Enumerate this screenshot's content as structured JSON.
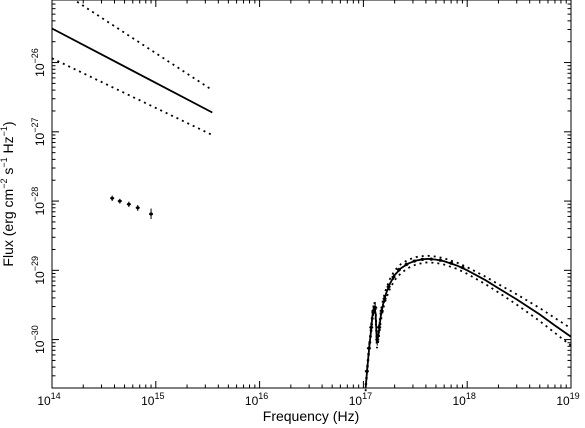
{
  "chart_data": {
    "type": "scatter",
    "xscale": "log",
    "yscale": "log",
    "xlim": [
      100000000000000.0,
      1e+19
    ],
    "ylim": [
      2e-31,
      8e-26
    ],
    "xlabel": "Frequency (Hz)",
    "ylabel_parts": [
      "Flux (erg cm",
      "−2",
      " s",
      "−1",
      " Hz",
      "−1",
      ")"
    ],
    "grid": false,
    "colors": {
      "line": "#000000",
      "background": "#ffffff"
    },
    "x_ticks": [
      {
        "value": 100000000000000.0,
        "base": "10",
        "exp": "14"
      },
      {
        "value": 1000000000000000.0,
        "base": "10",
        "exp": "15"
      },
      {
        "value": 1e+16,
        "base": "10",
        "exp": "16"
      },
      {
        "value": 1e+17,
        "base": "10",
        "exp": "17"
      },
      {
        "value": 1e+18,
        "base": "10",
        "exp": "18"
      },
      {
        "value": 1e+19,
        "base": "10",
        "exp": "19"
      }
    ],
    "y_ticks": [
      {
        "value": 1e-30,
        "base": "10",
        "exp": "−30"
      },
      {
        "value": 1e-29,
        "base": "10",
        "exp": "−29"
      },
      {
        "value": 1e-28,
        "base": "10",
        "exp": "−28"
      },
      {
        "value": 1e-27,
        "base": "10",
        "exp": "−27"
      },
      {
        "value": 1e-26,
        "base": "10",
        "exp": "−26"
      }
    ],
    "series": [
      {
        "style": "solid",
        "x": [
          100000000000000.0,
          3500000000000000.0
        ],
        "y": [
          3.1e-26,
          1.9e-27
        ]
      },
      {
        "style": "dotted",
        "x": [
          100000000000000.0,
          3500000000000000.0
        ],
        "y": [
          1.3e-25,
          4e-27
        ]
      },
      {
        "style": "dotted",
        "x": [
          100000000000000.0,
          3500000000000000.0
        ],
        "y": [
          1.15e-26,
          9e-28
        ]
      },
      {
        "style": "points",
        "x": [
          380000000000000.0,
          450000000000000.0,
          550000000000000.0,
          670000000000000.0,
          900000000000000.0
        ],
        "y": [
          1.1e-28,
          1e-28,
          9e-29,
          8e-29,
          6.5e-29
        ],
        "yerr_low": [
          1e-28,
          9.2e-29,
          8.2e-29,
          7.2e-29,
          5.5e-29
        ],
        "yerr_high": [
          1.2e-28,
          1.08e-28,
          9.8e-29,
          8.8e-29,
          7.8e-29
        ]
      },
      {
        "style": "solid",
        "x": [
          1.05e+17,
          1.12e+17,
          1.18e+17,
          1.22e+17,
          1.27e+17,
          1.31e+17,
          1.35e+17,
          1.4e+17,
          1.47e+17,
          1.55e+17,
          1.65e+17,
          1.8e+17,
          2e+17,
          2.3e+17,
          2.7e+17,
          3.2e+17,
          3.8e+17,
          4.2e+17,
          5e+17,
          6e+17,
          8e+17,
          1e+18,
          1.5e+18,
          2e+18,
          3e+18,
          5e+18,
          7e+18,
          1e+19
        ],
        "y": [
          2e-31,
          6e-31,
          1.3e-30,
          2.2e-30,
          3.1e-30,
          2.4e-30,
          9e-31,
          1.2e-30,
          2.2e-30,
          3.3e-30,
          4.6e-30,
          6.4e-30,
          8.5e-30,
          1.07e-29,
          1.25e-29,
          1.38e-29,
          1.45e-29,
          1.46e-29,
          1.43e-29,
          1.35e-29,
          1.17e-29,
          1e-29,
          7.2e-30,
          5.5e-30,
          3.8e-30,
          2.3e-30,
          1.6e-30,
          1.1e-30
        ]
      },
      {
        "style": "dotted",
        "x": [
          1.05e+17,
          1.12e+17,
          1.18e+17,
          1.22e+17,
          1.27e+17,
          1.31e+17,
          1.35e+17,
          1.4e+17,
          1.47e+17,
          1.55e+17,
          1.65e+17,
          1.8e+17,
          2e+17,
          2.3e+17,
          2.7e+17,
          3.2e+17,
          3.8e+17,
          4.2e+17,
          5e+17,
          6e+17,
          8e+17,
          1e+18,
          1.5e+18,
          2e+18,
          3e+18,
          5e+18,
          7e+18,
          1e+19
        ],
        "y": [
          2.2e-31,
          6.8e-31,
          1.5e-30,
          2.5e-30,
          3.5e-30,
          2.8e-30,
          1.05e-30,
          1.4e-30,
          2.6e-30,
          3.9e-30,
          5.4e-30,
          7.5e-30,
          9.9e-30,
          1.23e-29,
          1.42e-29,
          1.55e-29,
          1.61e-29,
          1.62e-29,
          1.58e-29,
          1.49e-29,
          1.29e-29,
          1.11e-29,
          8.1e-30,
          6.3e-30,
          4.5e-30,
          2.85e-30,
          2.05e-30,
          1.45e-30
        ]
      },
      {
        "style": "dotted",
        "x": [
          1.05e+17,
          1.12e+17,
          1.18e+17,
          1.22e+17,
          1.27e+17,
          1.31e+17,
          1.35e+17,
          1.4e+17,
          1.47e+17,
          1.55e+17,
          1.65e+17,
          1.8e+17,
          2e+17,
          2.3e+17,
          2.7e+17,
          3.2e+17,
          3.8e+17,
          4.2e+17,
          5e+17,
          6e+17,
          8e+17,
          1e+18,
          1.5e+18,
          2e+18,
          3e+18,
          5e+18,
          7e+18,
          1e+19
        ],
        "y": [
          1.8e-31,
          5.3e-31,
          1.1e-30,
          1.9e-30,
          2.7e-30,
          2e-30,
          7.5e-31,
          1e-30,
          1.85e-30,
          2.8e-30,
          3.9e-30,
          5.4e-30,
          7.2e-30,
          9.1e-30,
          1.08e-29,
          1.21e-29,
          1.29e-29,
          1.3e-29,
          1.28e-29,
          1.21e-29,
          1.05e-29,
          8.9e-30,
          6.3e-30,
          4.8e-30,
          3.2e-30,
          1.85e-30,
          1.25e-30,
          8.2e-31
        ]
      },
      {
        "style": "points",
        "x": [
          1.08e+17,
          1.13e+17,
          1.19e+17,
          1.25e+17,
          1.3e+17,
          1.36e+17,
          1.42e+17,
          1.5e+17,
          1.6e+17,
          1.75e+17,
          1.95e+17,
          2.2e+17,
          2.6e+17,
          3.1e+17,
          3.7e+17,
          4.5e+17,
          5.5e+17,
          7e+17,
          9e+17
        ],
        "y": [
          3.5e-31,
          7.5e-31,
          1.5e-30,
          2.6e-30,
          2.9e-30,
          1e-30,
          1.5e-30,
          2.6e-30,
          3.9e-30,
          5.8e-30,
          8e-30,
          1.02e-29,
          1.22e-29,
          1.36e-29,
          1.44e-29,
          1.45e-29,
          1.4e-29,
          1.27e-29,
          1.1e-29
        ],
        "yerr_low": [
          2.8e-31,
          6.2e-31,
          1.25e-30,
          2.2e-30,
          2.4e-30,
          8.2e-31,
          1.25e-30,
          2.25e-30,
          3.4e-30,
          5.2e-30,
          7.3e-30,
          9.5e-30,
          1.15e-29,
          1.3e-29,
          1.38e-29,
          1.39e-29,
          1.34e-29,
          1.21e-29,
          1.04e-29
        ],
        "yerr_high": [
          4.3e-31,
          9e-31,
          1.8e-30,
          3.1e-30,
          3.5e-30,
          1.2e-30,
          1.8e-30,
          3e-30,
          4.4e-30,
          6.4e-30,
          8.7e-30,
          1.09e-29,
          1.29e-29,
          1.42e-29,
          1.5e-29,
          1.51e-29,
          1.46e-29,
          1.33e-29,
          1.16e-29
        ]
      }
    ]
  }
}
